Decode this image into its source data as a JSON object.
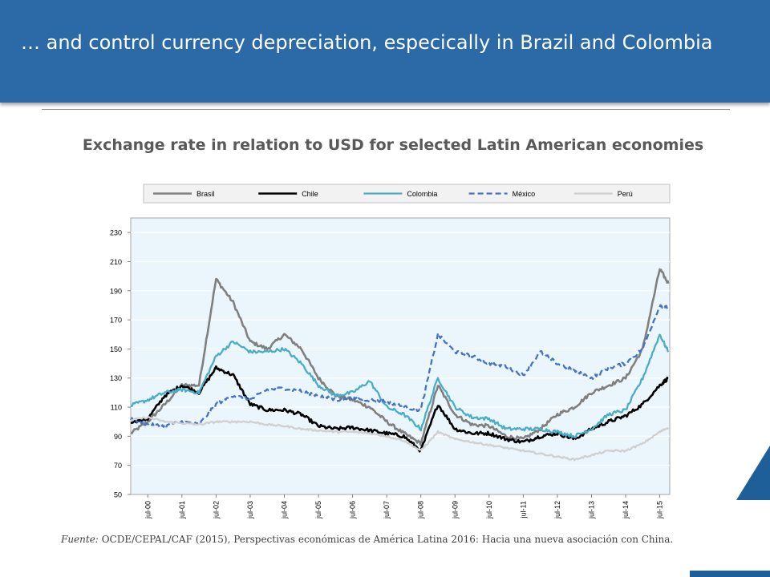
{
  "header": {
    "title": "… and control currency depreciation, especically in Brazil and Colombia"
  },
  "source": {
    "label": "Fuente:",
    "text": "OCDE/CEPAL/CAF (2015), Perspectivas económicas de América Latina 2016: Hacia una nueva asociación con China."
  },
  "colors": {
    "header": "#2b6aa6",
    "plot_background": "#eaf6fc",
    "accent": "#1f5f99"
  },
  "chart_data": {
    "type": "line",
    "title": "Exchange rate in relation to USD for selected Latin American economies",
    "xlabel": "",
    "ylabel": "",
    "ylim": [
      50,
      240
    ],
    "yticks": [
      50,
      70,
      90,
      110,
      130,
      150,
      170,
      190,
      210,
      230
    ],
    "x_ticks": [
      "jul-00",
      "jul-01",
      "jul-02",
      "jul-03",
      "jul-04",
      "jul-05",
      "jul-06",
      "jul-07",
      "jul-08",
      "jul-09",
      "jul-10",
      "jul-11",
      "jul-12",
      "jul-13",
      "jul-14",
      "jul-15"
    ],
    "grid": true,
    "legend_position": "top",
    "x": [
      "Jan-2000",
      "Jul-2000",
      "Jan-2001",
      "Jul-2001",
      "Jan-2002",
      "Jul-2002",
      "Jan-2003",
      "Jul-2003",
      "Jan-2004",
      "Jul-2004",
      "Jan-2005",
      "Jul-2005",
      "Jan-2006",
      "Jul-2006",
      "Jan-2007",
      "Jul-2007",
      "Jan-2008",
      "Jul-2008",
      "Jan-2009",
      "Jul-2009",
      "Jan-2010",
      "Jul-2010",
      "Jan-2011",
      "Jul-2011",
      "Jan-2012",
      "Jul-2012",
      "Jan-2013",
      "Jul-2013",
      "Jan-2014",
      "Jul-2014",
      "Jan-2015",
      "Jul-2015",
      "Oct-2015"
    ],
    "series": [
      {
        "name": "Brasil",
        "color": "#808080",
        "style": "solid",
        "width": 2.6,
        "values": [
          92,
          100,
          112,
          125,
          125,
          198,
          182,
          155,
          150,
          160,
          150,
          130,
          118,
          115,
          110,
          100,
          92,
          85,
          125,
          105,
          98,
          97,
          90,
          88,
          95,
          105,
          110,
          120,
          125,
          130,
          150,
          205,
          195
        ]
      },
      {
        "name": "Chile",
        "color": "#000000",
        "style": "solid",
        "width": 2.6,
        "values": [
          100,
          102,
          118,
          125,
          120,
          137,
          132,
          112,
          108,
          108,
          105,
          97,
          95,
          96,
          94,
          92,
          90,
          80,
          112,
          95,
          92,
          92,
          88,
          86,
          90,
          92,
          88,
          95,
          100,
          104,
          112,
          125,
          130
        ]
      },
      {
        "name": "Colombia",
        "color": "#4bacc6",
        "style": "solid",
        "width": 2.3,
        "values": [
          111,
          115,
          120,
          122,
          120,
          145,
          155,
          148,
          148,
          150,
          140,
          125,
          118,
          120,
          128,
          110,
          105,
          95,
          130,
          110,
          103,
          102,
          95,
          95,
          95,
          93,
          90,
          95,
          105,
          108,
          130,
          160,
          148
        ]
      },
      {
        "name": "México",
        "color": "#4472c4",
        "style": "dashed",
        "width": 2.3,
        "values": [
          102,
          98,
          97,
          100,
          98,
          112,
          118,
          115,
          122,
          123,
          121,
          118,
          115,
          116,
          115,
          114,
          110,
          108,
          160,
          148,
          145,
          140,
          138,
          132,
          148,
          140,
          135,
          130,
          137,
          140,
          150,
          180,
          178
        ]
      },
      {
        "name": "Perú",
        "color": "#d0d0d0",
        "style": "solid",
        "width": 2.3,
        "values": [
          101,
          103,
          100,
          99,
          98,
          100,
          100,
          100,
          98,
          97,
          95,
          94,
          93,
          93,
          92,
          90,
          87,
          80,
          93,
          88,
          86,
          84,
          82,
          80,
          78,
          76,
          74,
          77,
          80,
          80,
          85,
          93,
          96
        ]
      }
    ]
  }
}
